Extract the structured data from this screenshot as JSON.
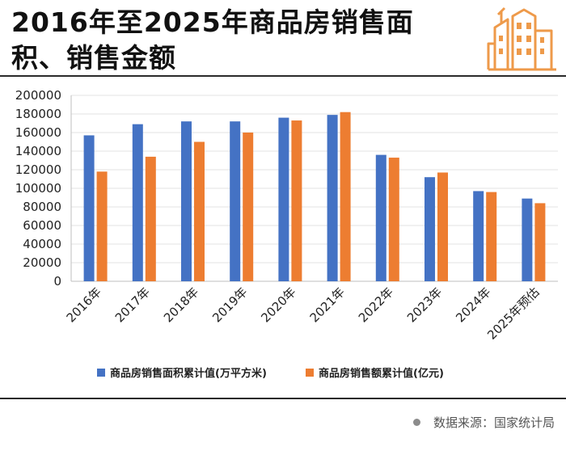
{
  "header": {
    "title": "2016年至2025年商品房销售面积、销售金额",
    "logo_icon": "buildings-icon"
  },
  "colors": {
    "area_series": "#4472c4",
    "amount_series": "#ed7d31",
    "logo": "#ee9a4a"
  },
  "chart_data": {
    "type": "bar",
    "categories": [
      "2016年",
      "2017年",
      "2018年",
      "2019年",
      "2020年",
      "2021年",
      "2022年",
      "2023年",
      "2024年",
      "2025年预估"
    ],
    "series": [
      {
        "name": "商品房销售面积累计值(万平方米)",
        "values": [
          157000,
          169000,
          172000,
          172000,
          176000,
          179000,
          136000,
          112000,
          97000,
          89000
        ]
      },
      {
        "name": "商品房销售额累计值(亿元)",
        "values": [
          118000,
          134000,
          150000,
          160000,
          173000,
          182000,
          133000,
          117000,
          96000,
          84000
        ]
      }
    ],
    "ylim": [
      0,
      200000
    ],
    "yticks": [
      "0",
      "20000",
      "40000",
      "60000",
      "80000",
      "100000",
      "120000",
      "140000",
      "160000",
      "180000",
      "200000"
    ],
    "grid": true,
    "legend_position": "bottom"
  },
  "footer": {
    "source": "数据来源：国家统计局"
  }
}
